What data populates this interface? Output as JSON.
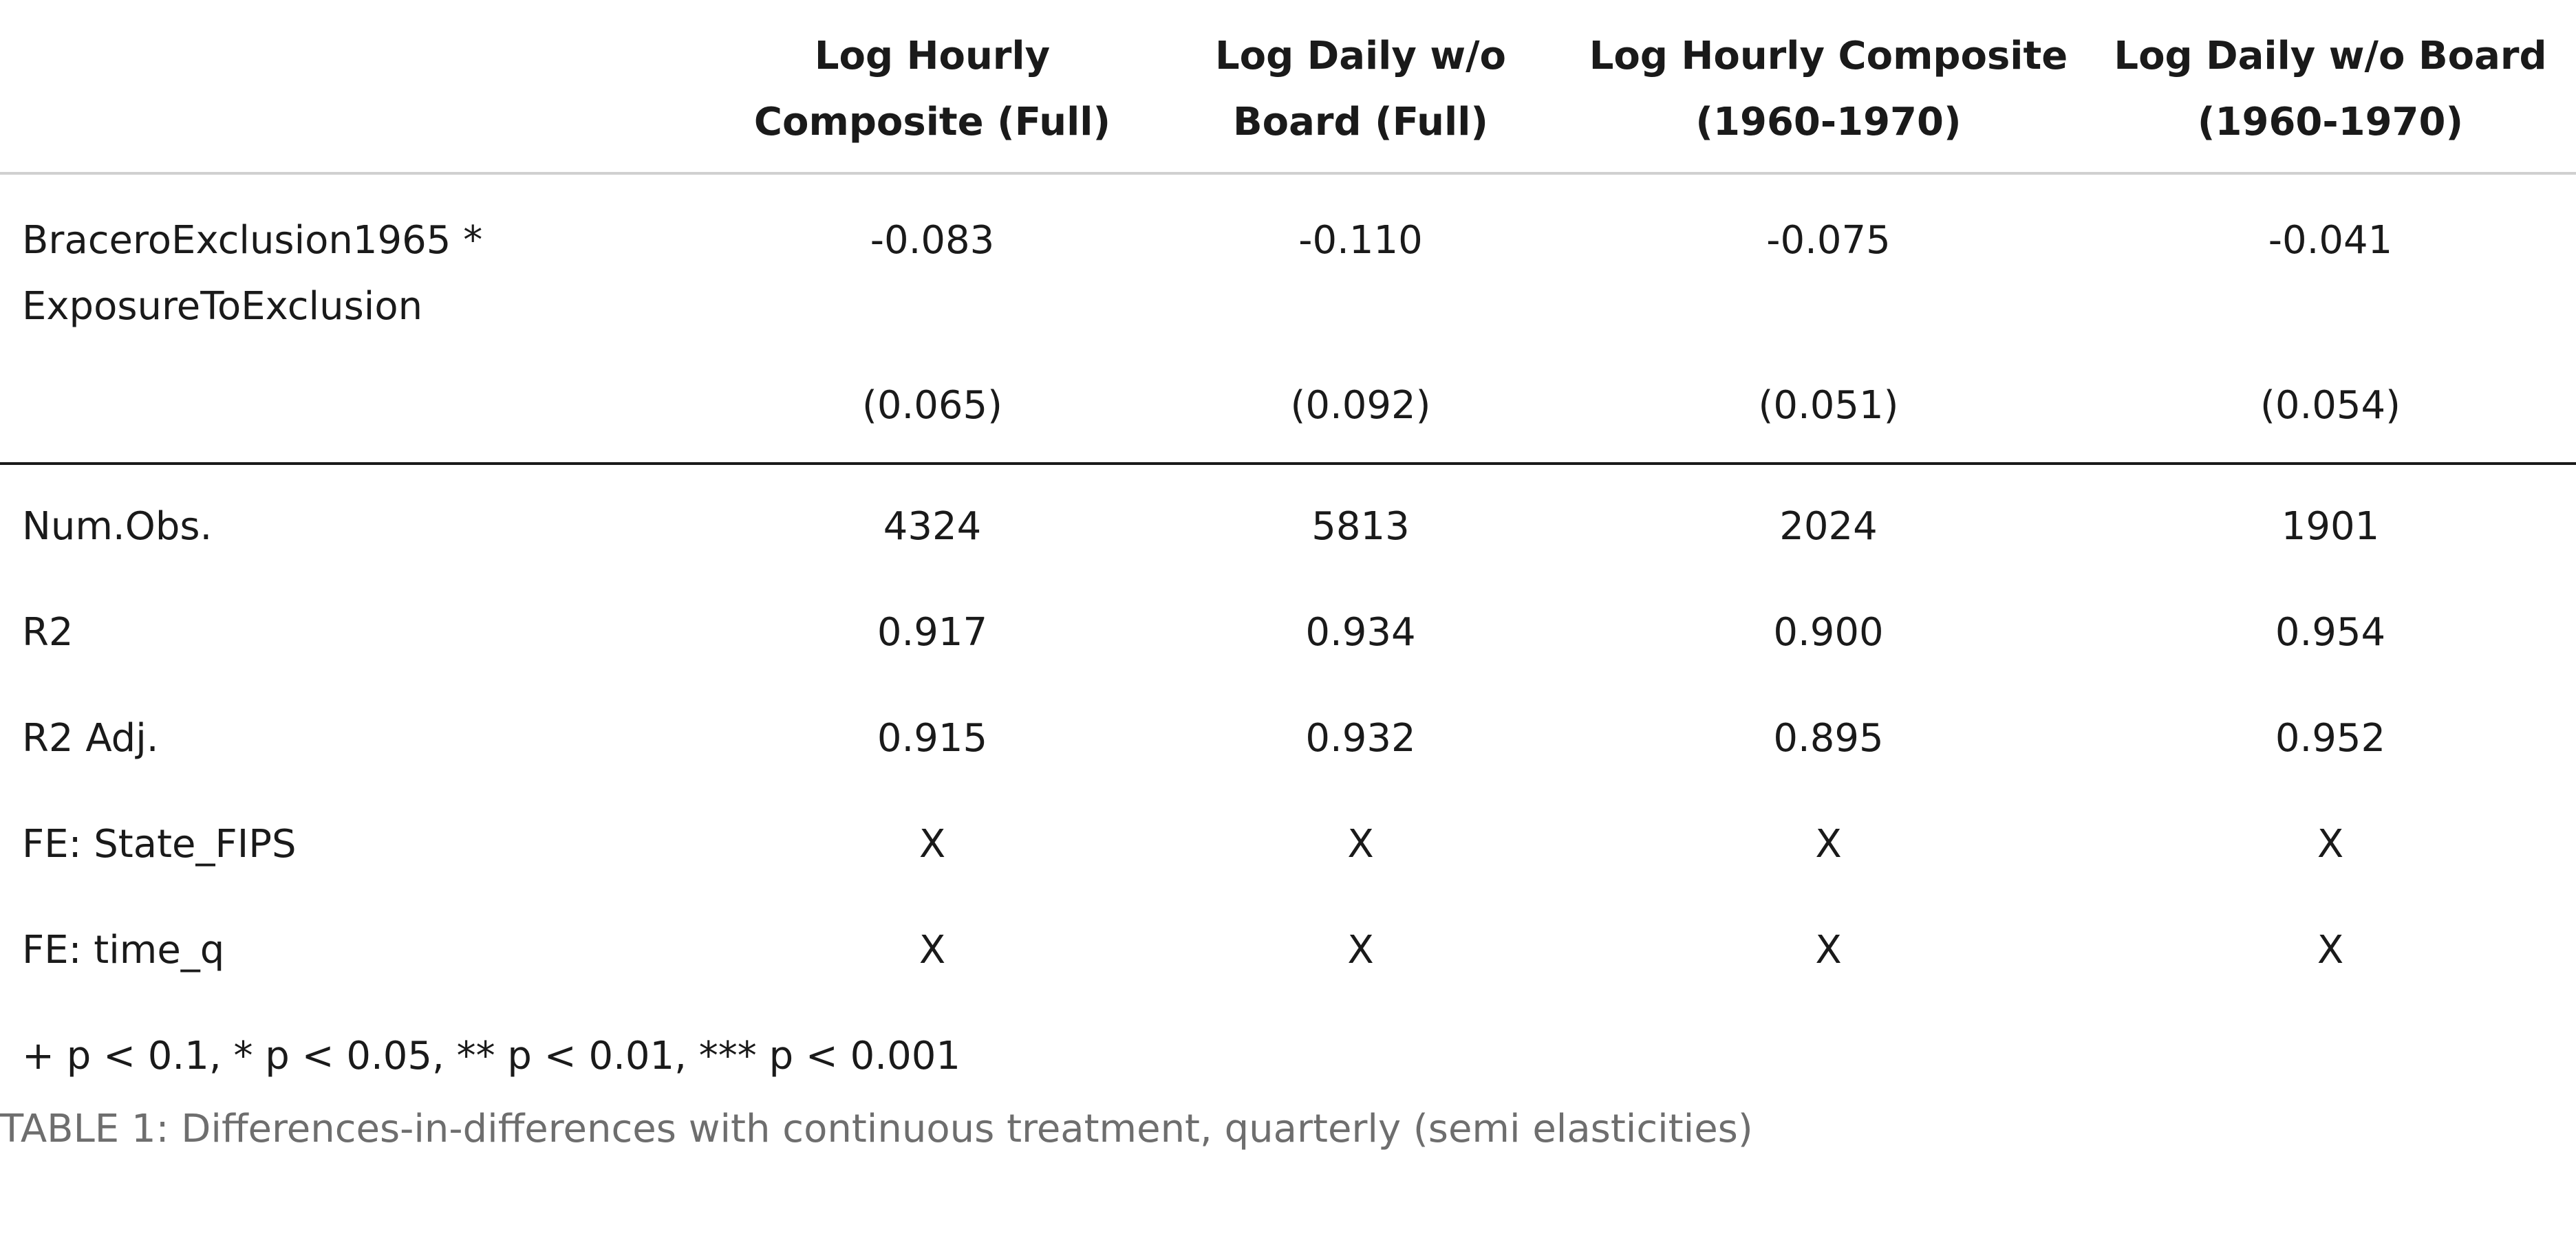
{
  "table": {
    "headers": [
      "",
      [
        "Log Hourly",
        "Composite (Full)"
      ],
      [
        "Log Daily w/o",
        "Board (Full)"
      ],
      [
        "Log Hourly Composite",
        "(1960-1970)"
      ],
      [
        "Log Daily w/o Board",
        "(1960-1970)"
      ]
    ],
    "coefficient": {
      "label_lines": [
        "BraceroExclusion1965 *",
        "ExposureToExclusion"
      ],
      "estimates": [
        "-0.083",
        "-0.110",
        "-0.075",
        "-0.041"
      ],
      "std_errors": [
        "(0.065)",
        "(0.092)",
        "(0.051)",
        "(0.054)"
      ]
    },
    "stats": [
      {
        "label": "Num.Obs.",
        "values": [
          "4324",
          "5813",
          "2024",
          "1901"
        ]
      },
      {
        "label": "R2",
        "values": [
          "0.917",
          "0.934",
          "0.900",
          "0.954"
        ]
      },
      {
        "label": "R2 Adj.",
        "values": [
          "0.915",
          "0.932",
          "0.895",
          "0.952"
        ]
      },
      {
        "label": "FE: State_FIPS",
        "values": [
          "X",
          "X",
          "X",
          "X"
        ]
      },
      {
        "label": "FE: time_q",
        "values": [
          "X",
          "X",
          "X",
          "X"
        ]
      }
    ],
    "notes": "+ p < 0.1, * p < 0.05, ** p < 0.01, *** p < 0.001"
  },
  "caption": "TABLE 1: Differences-in-differences with continuous treatment, quarterly (semi elasticities)",
  "colors": {
    "text": "#1a1a1a",
    "caption": "#6e6e6e",
    "header_rule": "#d0d0d0",
    "body_rule": "#1a1a1a"
  }
}
